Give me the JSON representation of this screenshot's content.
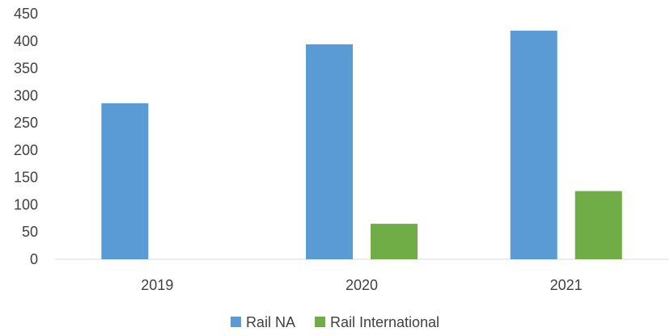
{
  "chart_data": {
    "type": "bar",
    "categories": [
      "2019",
      "2020",
      "2021"
    ],
    "series": [
      {
        "name": "Rail NA",
        "color": "#5B9BD5",
        "values": [
          286,
          394,
          419
        ]
      },
      {
        "name": "Rail International",
        "color": "#70AD47",
        "values": [
          0,
          65,
          125
        ]
      }
    ],
    "yticks": [
      "0",
      "50",
      "100",
      "150",
      "200",
      "250",
      "300",
      "350",
      "400",
      "450"
    ],
    "ylim": [
      0,
      450
    ],
    "grid": false,
    "legend_position": "bottom"
  }
}
